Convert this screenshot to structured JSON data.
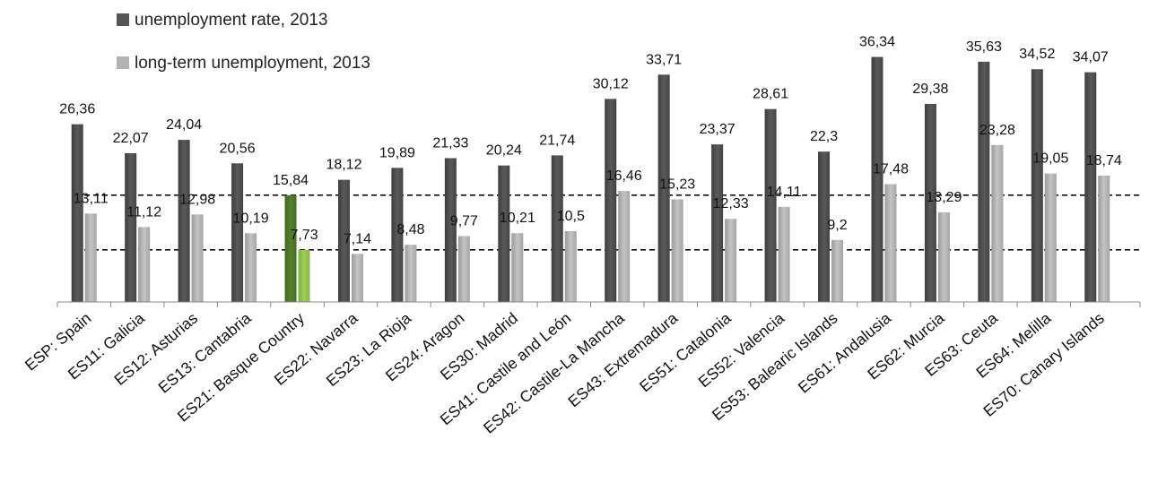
{
  "chart_data": {
    "type": "bar",
    "title": "",
    "xlabel": "",
    "ylabel": "",
    "ylim": [
      0,
      40
    ],
    "grid": false,
    "legend_position": "top-left",
    "categories": [
      "ESP: Spain",
      "ES11: Galicia",
      "ES12: Asturias",
      "ES13: Cantabria",
      "ES21: Basque Country",
      "ES22: Navarra",
      "ES23: La Rioja",
      "ES24: Aragon",
      "ES30: Madrid",
      "ES41: Castile and León",
      "ES42: Castile-La Mancha",
      "ES43: Extremadura",
      "ES51: Catalonia",
      "ES52: Valencia",
      "ES53: Balearic Islands",
      "ES61: Andalusia",
      "ES62: Murcia",
      "ES63: Ceuta",
      "ES64: Melilla",
      "ES70: Canary Islands"
    ],
    "series": [
      {
        "name": "unemployment rate, 2013",
        "values": [
          26.36,
          22.07,
          24.04,
          20.56,
          15.84,
          18.12,
          19.89,
          21.33,
          20.24,
          21.74,
          30.12,
          33.71,
          23.37,
          28.61,
          22.3,
          36.34,
          29.38,
          35.63,
          34.52,
          34.07
        ],
        "labels": [
          "26,36",
          "22,07",
          "24,04",
          "20,56",
          "15,84",
          "18,12",
          "19,89",
          "21,33",
          "20,24",
          "21,74",
          "30,12",
          "33,71",
          "23,37",
          "28,61",
          "22,3",
          "36,34",
          "29,38",
          "35,63",
          "34,52",
          "34,07"
        ],
        "color": "#555555"
      },
      {
        "name": "long-term unemployment, 2013",
        "values": [
          13.11,
          11.12,
          12.98,
          10.19,
          7.73,
          7.14,
          8.48,
          9.77,
          10.21,
          10.5,
          16.46,
          15.23,
          12.33,
          14.11,
          9.2,
          17.48,
          13.29,
          23.28,
          19.05,
          18.74
        ],
        "labels": [
          "13,11",
          "11,12",
          "12,98",
          "10,19",
          "7,73",
          "7,14",
          "8,48",
          "9,77",
          "10,21",
          "10,5",
          "16,46",
          "15,23",
          "12,33",
          "14,11",
          "9,2",
          "17,48",
          "13,29",
          "23,28",
          "19,05",
          "18,74"
        ],
        "color": "#b3b3b3"
      }
    ],
    "highlight": {
      "category": "ES21: Basque Country",
      "colors": [
        "#4f7a28",
        "#8fbf4a"
      ]
    },
    "reference_lines": [
      15.84,
      7.73
    ]
  },
  "legend": {
    "items": [
      {
        "label": "unemployment rate, 2013",
        "color": "#555555"
      },
      {
        "label": "long-term unemployment, 2013",
        "color": "#b3b3b3"
      }
    ]
  }
}
